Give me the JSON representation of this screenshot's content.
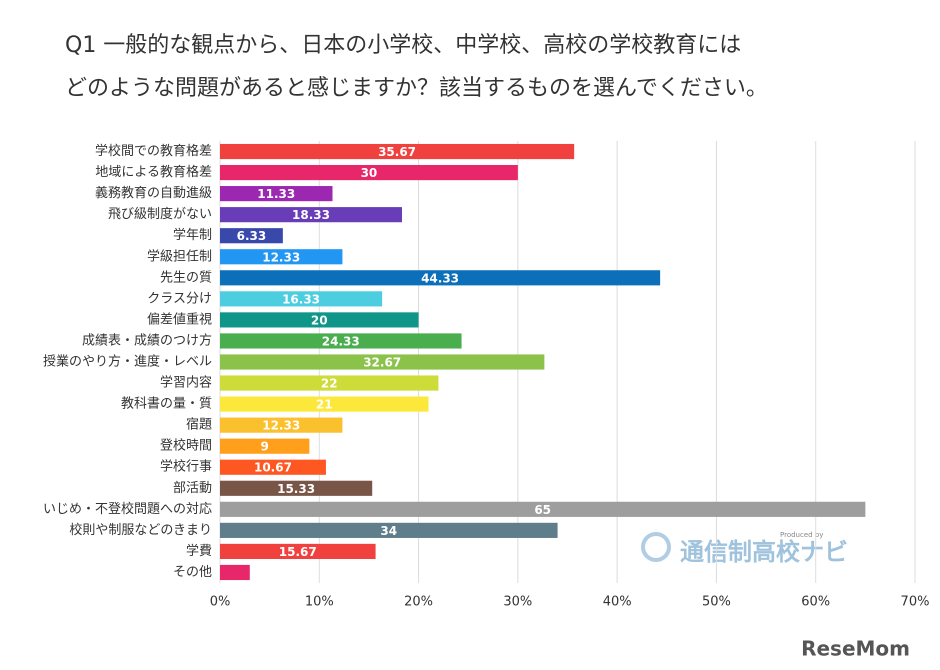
{
  "chart_data": {
    "type": "barh",
    "title": "Q1 一般的な観点から、日本の小学校、中学校、高校の学校教育には",
    "subtitle": "どのような問題があると感じますか？該当するものを選んでください。",
    "categories": [
      "学校間での教育格差",
      "地域による教育格差",
      "義務教育の自動進級",
      "飛び級制度がない",
      "学年制",
      "学級担任制",
      "先生の質",
      "クラス分け",
      "偏差値重視",
      "成績表・成績のつけ方",
      "授業のやり方・進度・レベル",
      "学習内容",
      "教科書の量・質",
      "宿題",
      "登校時間",
      "学校行事",
      "部活動",
      "いじめ・不登校問題への対応",
      "校則や制服などのきまり",
      "学費",
      "その他"
    ],
    "values": [
      35.67,
      30,
      11.33,
      18.33,
      6.33,
      12.33,
      44.33,
      16.33,
      20,
      24.33,
      32.67,
      22,
      21,
      12.33,
      9,
      10.67,
      15.33,
      65,
      34,
      15.67,
      3
    ],
    "value_labels": [
      "35.67",
      "30",
      "11.33",
      "18.33",
      "6.33",
      "12.33",
      "44.33",
      "16.33",
      "20",
      "24.33",
      "32.67",
      "22",
      "21",
      "12.33",
      "9",
      "10.67",
      "15.33",
      "65",
      "34",
      "15.67",
      null
    ],
    "colors": [
      "#f0413f",
      "#e8266a",
      "#9c27b0",
      "#6a3db8",
      "#3949ab",
      "#2196f3",
      "#0b6fba",
      "#4ccde0",
      "#0f9688",
      "#4aae4f",
      "#8bc34a",
      "#cddc39",
      "#fbe83b",
      "#fbc02d",
      "#ff9f1c",
      "#ff5722",
      "#795548",
      "#9e9e9e",
      "#607d8b",
      "#f0413f",
      "#e8266a"
    ],
    "xlim": [
      0,
      70
    ],
    "xticks": [
      {
        "value": 0,
        "label": "0%"
      },
      {
        "value": 10,
        "label": "10%"
      },
      {
        "value": 20,
        "label": "20%"
      },
      {
        "value": 30,
        "label": "30%"
      },
      {
        "value": 40,
        "label": "40%"
      },
      {
        "value": 50,
        "label": "50%"
      },
      {
        "value": 60,
        "label": "60%"
      },
      {
        "value": 70,
        "label": "70%"
      }
    ],
    "grid": true
  },
  "watermark": {
    "credit": "Produced by",
    "logo": "通信制高校ナビ",
    "source": "ReseMom"
  }
}
